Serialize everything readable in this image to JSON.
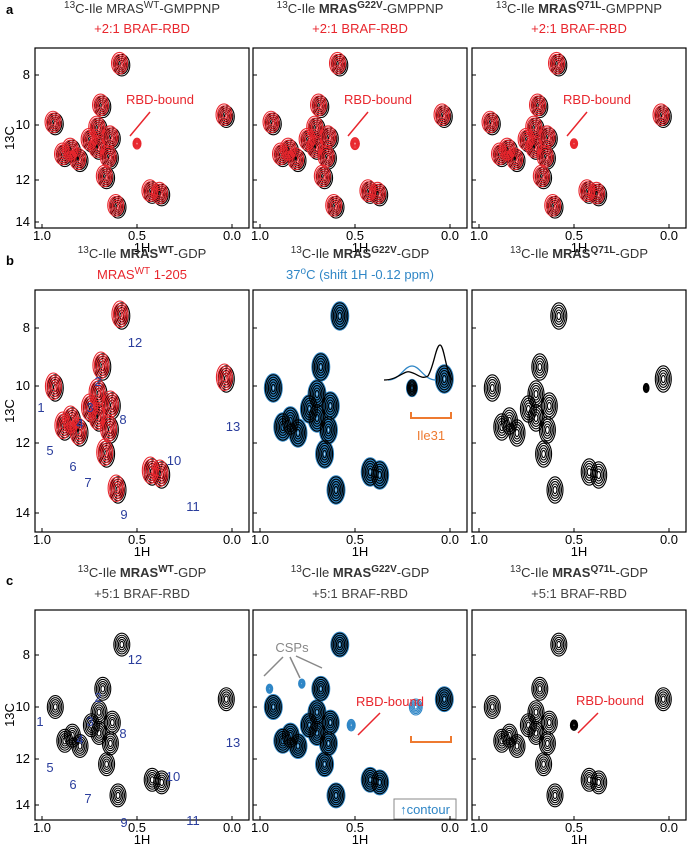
{
  "panel_labels": [
    "a",
    "b",
    "c"
  ],
  "axis": {
    "x_label": "1H",
    "y_label": "13C",
    "x_ticks": [
      "1.0",
      "0.5",
      "0.0"
    ],
    "y_ticks": [
      "8",
      "10",
      "12",
      "14"
    ]
  },
  "rows": [
    {
      "panels": [
        {
          "title": [
            "13",
            "C-Ile ",
            "MRAS",
            "WT",
            "-GMPPNP"
          ],
          "subtitle": [
            "+2:1 BRAF-RBD"
          ]
        },
        {
          "title": [
            "13",
            "C-Ile ",
            "MRAS",
            "G22V",
            "-GMPPNP"
          ],
          "subtitle": [
            "+2:1 BRAF-RBD"
          ]
        },
        {
          "title": [
            "13",
            "C-Ile ",
            "MRAS",
            "Q71L",
            "-GMPPNP"
          ],
          "subtitle": [
            "+2:1 BRAF-RBD"
          ]
        }
      ]
    },
    {
      "panels": [
        {
          "title": [
            "13",
            "C-Ile ",
            "MRAS",
            "WT",
            "-GDP"
          ],
          "subtitle": [
            "MRAS",
            "WT",
            " 1-205"
          ]
        },
        {
          "title": [
            "13",
            "C-Ile ",
            "MRAS",
            "G22V",
            "-GDP"
          ],
          "subtitle": [
            "37",
            "o",
            "C (shift 1H -0.12 ppm)"
          ]
        },
        {
          "title": [
            "13",
            "C-Ile ",
            "MRAS",
            "Q71L",
            "-GDP"
          ]
        }
      ]
    },
    {
      "panels": [
        {
          "title": [
            "13",
            "C-Ile ",
            "MRAS",
            "WT",
            "-GDP"
          ],
          "subtitle": [
            "+5:1 BRAF-RBD"
          ]
        },
        {
          "title": [
            "13",
            "C-Ile ",
            "MRAS",
            "G22V",
            "-GDP"
          ],
          "subtitle": [
            "+5:1 BRAF-RBD"
          ]
        },
        {
          "title": [
            "13",
            "C-Ile ",
            "MRAS",
            "Q71L",
            "-GDP"
          ],
          "subtitle": [
            "+5:1 BRAF-RBD"
          ]
        }
      ]
    }
  ],
  "annotations": {
    "rbd_bound": "RBD-bound",
    "ile31": "Ile31",
    "csps": "CSPs",
    "contour": "↑contour"
  },
  "peak_labels": [
    "1",
    "2",
    "3",
    "4",
    "5",
    "6",
    "7",
    "8",
    "9",
    "10",
    "11",
    "12",
    "13"
  ]
}
